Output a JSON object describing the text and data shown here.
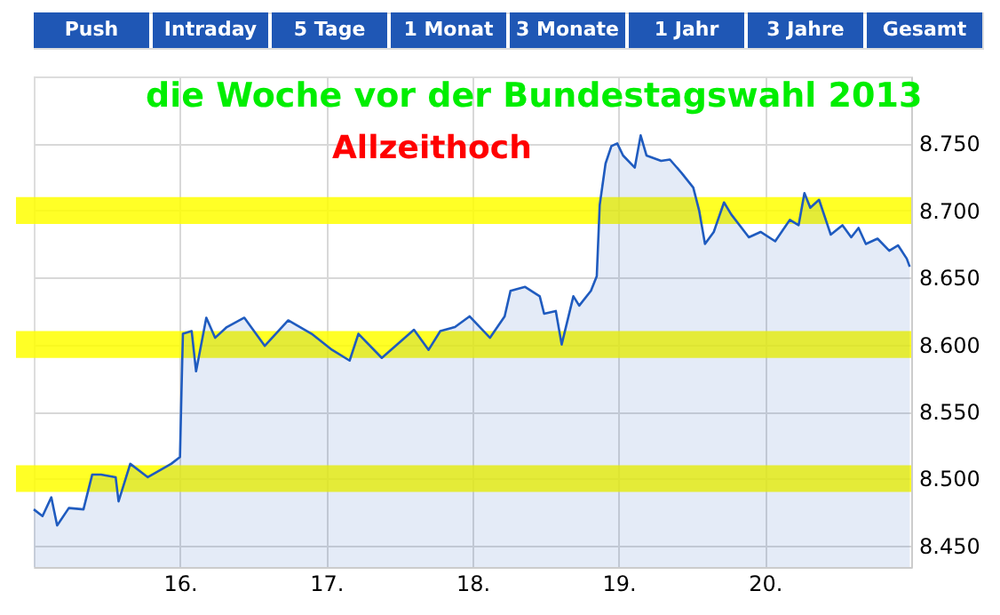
{
  "chart_data": {
    "type": "area",
    "title": "die Woche vor der Bundestagswahl 2013",
    "annotations": [
      "Allzeithoch",
      "Push",
      "Intraday",
      "5 Tage",
      "1 Monat",
      "3 Monate",
      "1 Jahr",
      "3 Jahre",
      "Gesamt"
    ],
    "x": [
      15.0,
      15.06,
      15.12,
      15.16,
      15.24,
      15.34,
      15.4,
      15.46,
      15.56,
      15.58,
      15.66,
      15.78,
      15.94,
      16.0,
      16.01,
      16.02,
      16.08,
      16.11,
      16.18,
      16.24,
      16.32,
      16.44,
      16.58,
      16.74,
      16.9,
      17.04,
      17.16,
      17.22,
      17.38,
      17.6,
      17.7,
      17.78,
      17.88,
      17.98,
      18.12,
      18.22,
      18.26,
      18.36,
      18.46,
      18.49,
      18.57,
      18.61,
      18.69,
      18.73,
      18.81,
      18.85,
      18.87,
      18.91,
      18.95,
      18.99,
      19.03,
      19.11,
      19.15,
      19.19,
      19.29,
      19.35,
      19.43,
      19.51,
      19.55,
      19.59,
      19.65,
      19.72,
      19.77,
      19.89,
      19.97,
      20.07,
      20.17,
      20.23,
      20.27,
      20.31,
      20.37,
      20.45,
      20.53,
      20.59,
      20.64,
      20.69,
      20.77,
      20.85,
      20.91,
      20.97,
      20.99
    ],
    "series": [
      {
        "color": "#1f5bbf",
        "values": [
          8477,
          8472,
          8486,
          8465,
          8478,
          8477,
          8503,
          8503,
          8501,
          8483,
          8511,
          8501,
          8511,
          8516,
          8564,
          8608,
          8610,
          8580,
          8620,
          8605,
          8613,
          8620,
          8599,
          8618,
          8608,
          8596,
          8588,
          8608,
          8590,
          8611,
          8596,
          8610,
          8613,
          8621,
          8605,
          8621,
          8640,
          8643,
          8636,
          8623,
          8625,
          8600,
          8636,
          8629,
          8640,
          8651,
          8704,
          8735,
          8748,
          8750,
          8741,
          8732,
          8756,
          8741,
          8737,
          8738,
          8728,
          8717,
          8700,
          8675,
          8684,
          8706,
          8697,
          8680,
          8684,
          8677,
          8693,
          8689,
          8713,
          8702,
          8708,
          8682,
          8689,
          8680,
          8687,
          8675,
          8679,
          8670,
          8674,
          8664,
          8658
        ]
      }
    ],
    "xlim": [
      15,
      21
    ],
    "xticks": [
      {
        "value": 16,
        "label": "16."
      },
      {
        "value": 17,
        "label": "17."
      },
      {
        "value": 18,
        "label": "18."
      },
      {
        "value": 19,
        "label": "19."
      },
      {
        "value": 20,
        "label": "20."
      }
    ],
    "ylim": [
      8434,
      8800
    ],
    "yticks": [
      {
        "value": 8450,
        "label": "8.450"
      },
      {
        "value": 8500,
        "label": "8.500"
      },
      {
        "value": 8550,
        "label": "8.550"
      },
      {
        "value": 8600,
        "label": "8.600"
      },
      {
        "value": 8650,
        "label": "8.650"
      },
      {
        "value": 8700,
        "label": "8.700"
      },
      {
        "value": 8750,
        "label": "8.750"
      }
    ],
    "bands": [
      {
        "axis": "y",
        "from": 8490,
        "to": 8510,
        "color": "#ffff00"
      },
      {
        "axis": "y",
        "from": 8590,
        "to": 8610,
        "color": "#ffff00"
      },
      {
        "axis": "y",
        "from": 8690,
        "to": 8710,
        "color": "#ffff00"
      }
    ],
    "grid": true
  }
}
